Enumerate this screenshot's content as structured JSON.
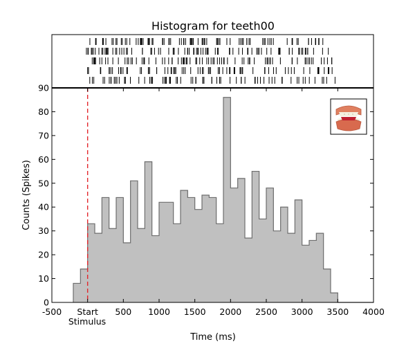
{
  "chart_data": {
    "type": "bar",
    "title": "Histogram for teeth00",
    "xlabel": "Time (ms)",
    "ylabel": "Counts (Spikes)",
    "xlim": [
      -500,
      4000
    ],
    "ylim": [
      0,
      90
    ],
    "x_ticks": [
      {
        "value": -500,
        "label": "-500"
      },
      {
        "value": 0,
        "label": "Start"
      },
      {
        "value": 500,
        "label": "500"
      },
      {
        "value": 1000,
        "label": "1000"
      },
      {
        "value": 1500,
        "label": "1500"
      },
      {
        "value": 2000,
        "label": "2000"
      },
      {
        "value": 2500,
        "label": "2500"
      },
      {
        "value": 3000,
        "label": "3000"
      },
      {
        "value": 3500,
        "label": "3500"
      },
      {
        "value": 4000,
        "label": "4000"
      }
    ],
    "stimulus_label": "Stimulus",
    "y_ticks": [
      0,
      10,
      20,
      30,
      40,
      50,
      60,
      70,
      80,
      90
    ],
    "stimulus_time": 0,
    "stimulus_line_color": "#e3262b",
    "bar_fill": "#c0c0c0",
    "bar_edge": "#6d6d6d",
    "bin_width": 100,
    "bin_starts": [
      -200,
      -100,
      0,
      100,
      200,
      300,
      400,
      500,
      600,
      700,
      800,
      900,
      1000,
      1100,
      1200,
      1300,
      1400,
      1500,
      1600,
      1700,
      1800,
      1900,
      2000,
      2100,
      2200,
      2300,
      2400,
      2500,
      2600,
      2700,
      2800,
      2900,
      3000,
      3100,
      3200,
      3300,
      3400,
      3500
    ],
    "counts": [
      8,
      14,
      33,
      29,
      44,
      31,
      44,
      25,
      51,
      31,
      59,
      28,
      42,
      42,
      33,
      47,
      44,
      39,
      45,
      44,
      33,
      86,
      48,
      52,
      27,
      55,
      35,
      48,
      30,
      40,
      29,
      43,
      24,
      26,
      29,
      14,
      4,
      0
    ],
    "raster": {
      "trials": 5,
      "trial_ranges": [
        [
          -50,
          3340
        ],
        [
          -20,
          3400
        ],
        [
          -10,
          3450
        ],
        [
          0,
          3500
        ],
        [
          20,
          3480
        ]
      ],
      "events_per_trial": [
        90,
        85,
        80,
        75,
        70
      ]
    },
    "thumbnail_icon": "teeth-dentures-icon",
    "grid": false
  }
}
